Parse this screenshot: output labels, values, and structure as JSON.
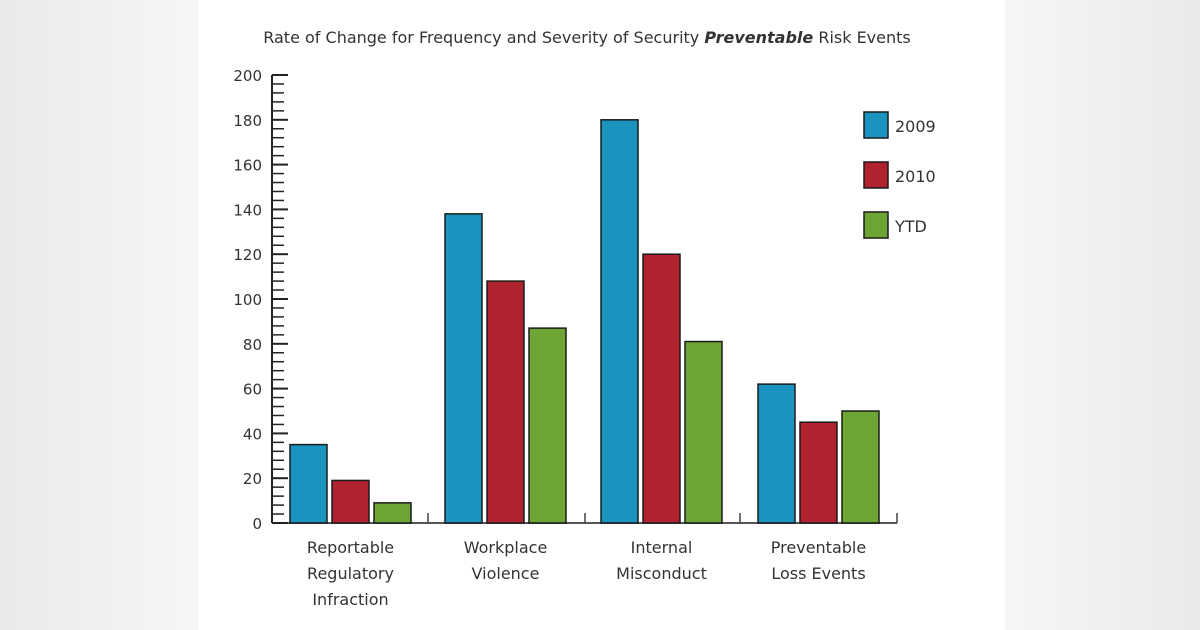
{
  "chart_data": {
    "type": "bar",
    "title_parts": [
      "Rate of Change for Frequency and Severity of Security ",
      "Preventable",
      " Risk Events"
    ],
    "categories": [
      [
        "Reportable",
        "Regulatory",
        "Infraction"
      ],
      [
        "Workplace",
        "Violence"
      ],
      [
        "Internal",
        "Misconduct"
      ],
      [
        "Preventable",
        "Loss Events"
      ]
    ],
    "series": [
      {
        "name": "2009",
        "color": "#1a93bf",
        "values": [
          35,
          138,
          180,
          62
        ]
      },
      {
        "name": "2010",
        "color": "#b0222e",
        "values": [
          19,
          108,
          120,
          45
        ]
      },
      {
        "name": "YTD",
        "color": "#6da534",
        "values": [
          9,
          87,
          81,
          50
        ]
      }
    ],
    "ylim": [
      0,
      200
    ],
    "yticks": [
      "0",
      "20",
      "40",
      "60",
      "80",
      "100",
      "120",
      "140",
      "160",
      "180",
      "200"
    ],
    "legend": "top-right",
    "grid": false
  }
}
